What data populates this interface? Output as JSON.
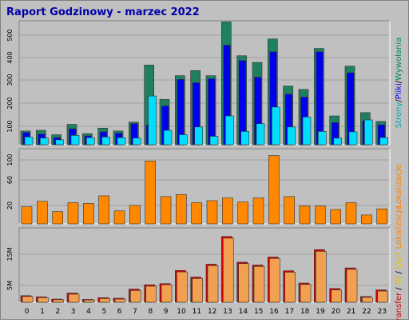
{
  "chart_data": {
    "type": "bar",
    "title": "Raport Godzinowy -  marzec 2022",
    "categories": [
      "0",
      "1",
      "2",
      "3",
      "4",
      "5",
      "6",
      "7",
      "8",
      "9",
      "10",
      "11",
      "12",
      "13",
      "14",
      "15",
      "16",
      "17",
      "18",
      "19",
      "20",
      "21",
      "22",
      "23"
    ],
    "panels": [
      {
        "name": "top",
        "ylim": [
          0,
          560
        ],
        "yticks": [
          "100",
          "200",
          "300",
          "400",
          "500"
        ],
        "ylabel_parts": [
          {
            "text": "Strony",
            "color": "#00aaaa"
          },
          {
            "text": "/",
            "color": "#000000"
          },
          {
            "text": "Pliki",
            "color": "#0000ff"
          },
          {
            "text": "/",
            "color": "#000000"
          },
          {
            "text": "Wywołania",
            "color": "#008866"
          }
        ],
        "series": [
          {
            "name": "Wywołania",
            "color": "#1f8060",
            "values": [
              62,
              65,
              45,
              92,
              50,
              75,
              62,
              102,
              360,
              205,
              312,
              335,
              312,
              555,
              402,
              372,
              478,
              265,
              250,
              435,
              130,
              355,
              145,
              105
            ]
          },
          {
            "name": "Pliki",
            "color": "#0000ee",
            "values": [
              55,
              48,
              32,
              72,
              40,
              58,
              52,
              95,
              90,
              175,
              295,
              280,
              298,
              450,
              380,
              305,
              420,
              228,
              215,
              420,
              100,
              325,
              108,
              90
            ]
          },
          {
            "name": "Strony",
            "color": "#00ddff",
            "values": [
              35,
              30,
              22,
              42,
              32,
              35,
              32,
              30,
              220,
              65,
              45,
              80,
              38,
              130,
              60,
              95,
              170,
              80,
              125,
              60,
              30,
              58,
              112,
              32
            ]
          }
        ]
      },
      {
        "name": "middle",
        "ylim": [
          0,
          110
        ],
        "yticks": [
          "20",
          "60",
          "100"
        ],
        "ylabel_parts": [
          {
            "text": "Lokalizacje",
            "color": "#ff8000"
          }
        ],
        "series": [
          {
            "name": "Lokalizacje",
            "color": "#ff8800",
            "values": [
              25,
              33,
              18,
              31,
              30,
              41,
              19,
              27,
              92,
              40,
              43,
              31,
              34,
              38,
              32,
              38,
              100,
              40,
              26,
              26,
              21,
              31,
              13,
              22
            ]
          }
        ]
      },
      {
        "name": "bottom",
        "ylim": [
          0,
          26
        ],
        "yticks": [
          "5M",
          "15M"
        ],
        "ylabel_parts": [
          {
            "text": "Transfer",
            "color": "#cc0000"
          },
          {
            "text": " / ",
            "color": "#000000"
          },
          {
            "text": "IN",
            "color": "#e0c000"
          },
          {
            "text": " / ",
            "color": "#000000"
          },
          {
            "text": "OUT",
            "color": "#e0c000"
          },
          {
            "text": " Lokalizacje",
            "color": "#ff8000"
          }
        ],
        "series": [
          {
            "name": "Transfer",
            "color": "#dd0000",
            "values": [
              2.3,
              1.9,
              1.1,
              3.2,
              1.0,
              1.6,
              1.4,
              4.6,
              6.1,
              6.5,
              11.1,
              8.8,
              13.3,
              23.0,
              14.0,
              13.0,
              15.8,
              11.0,
              6.7,
              18.4,
              4.8,
              12.0,
              2.0,
              4.3
            ]
          },
          {
            "name": "Transfer OUT",
            "color": "#f0a050",
            "values": [
              2.0,
              1.6,
              0.9,
              2.8,
              0.8,
              1.3,
              1.1,
              4.1,
              5.6,
              6.1,
              10.6,
              8.3,
              12.8,
              22.4,
              13.5,
              12.5,
              15.3,
              10.5,
              6.2,
              17.8,
              4.3,
              11.5,
              1.7,
              3.9
            ]
          }
        ]
      }
    ]
  }
}
